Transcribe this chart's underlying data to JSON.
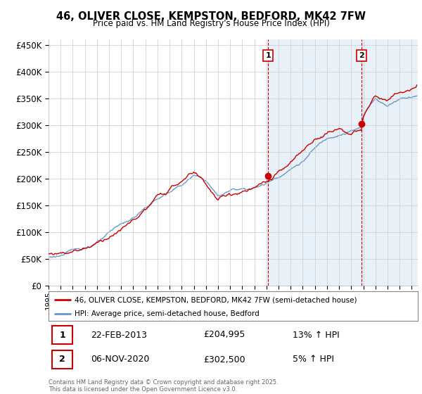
{
  "title1": "46, OLIVER CLOSE, KEMPSTON, BEDFORD, MK42 7FW",
  "title2": "Price paid vs. HM Land Registry's House Price Index (HPI)",
  "ylabel_ticks": [
    "£0",
    "£50K",
    "£100K",
    "£150K",
    "£200K",
    "£250K",
    "£300K",
    "£350K",
    "£400K",
    "£450K"
  ],
  "ytick_values": [
    0,
    50000,
    100000,
    150000,
    200000,
    250000,
    300000,
    350000,
    400000,
    450000
  ],
  "ylim": [
    0,
    460000
  ],
  "xlim_start": 1995.0,
  "xlim_end": 2025.5,
  "xtick_years": [
    1995,
    1996,
    1997,
    1998,
    1999,
    2000,
    2001,
    2002,
    2003,
    2004,
    2005,
    2006,
    2007,
    2008,
    2009,
    2010,
    2011,
    2012,
    2013,
    2014,
    2015,
    2016,
    2017,
    2018,
    2019,
    2020,
    2021,
    2022,
    2023,
    2024,
    2025
  ],
  "red_line_color": "#cc0000",
  "blue_line_color": "#6699cc",
  "blue_fill_color": "#ddeeff",
  "marker1_x": 2013.13,
  "marker1_y": 204995,
  "marker2_x": 2020.85,
  "marker2_y": 302500,
  "vline1_x": 2013.13,
  "vline2_x": 2020.85,
  "legend_label_red": "46, OLIVER CLOSE, KEMPSTON, BEDFORD, MK42 7FW (semi-detached house)",
  "legend_label_blue": "HPI: Average price, semi-detached house, Bedford",
  "annotation1_date": "22-FEB-2013",
  "annotation1_price": "£204,995",
  "annotation1_hpi": "13% ↑ HPI",
  "annotation2_date": "06-NOV-2020",
  "annotation2_price": "£302,500",
  "annotation2_hpi": "5% ↑ HPI",
  "footer": "Contains HM Land Registry data © Crown copyright and database right 2025.\nThis data is licensed under the Open Government Licence v3.0.",
  "bg_color": "#ffffff",
  "grid_color": "#cccccc",
  "highlight_color": "#e8f0f8"
}
